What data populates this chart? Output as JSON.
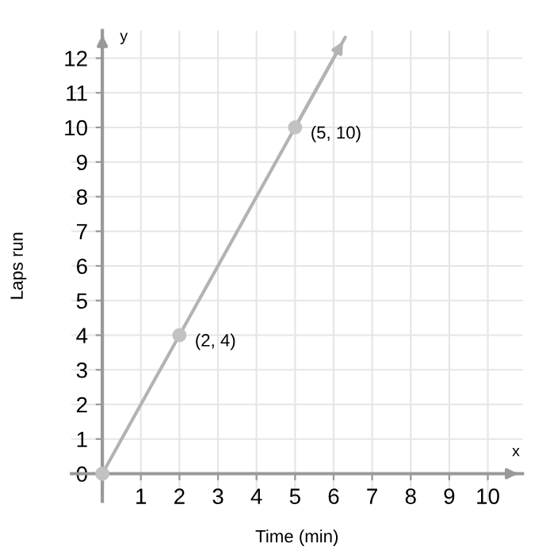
{
  "chart_data": {
    "type": "line",
    "xlabel": "Time (min)",
    "ylabel": "Laps run",
    "series": [
      {
        "color": "#b3b3b3",
        "x": [
          0,
          2,
          5,
          6.3
        ],
        "values": [
          0,
          4,
          10,
          12.6
        ],
        "marker": "none"
      },
      {
        "type": "scatter",
        "color": "#c2c2c2",
        "x": [
          0,
          2,
          5
        ],
        "values": [
          0,
          4,
          10
        ],
        "marker": "circle"
      }
    ],
    "annotations": [
      {
        "text": "(2, 4)",
        "x": 2,
        "y": 4
      },
      {
        "text": "(5, 10)",
        "x": 5,
        "y": 10
      },
      "x",
      "y"
    ],
    "xlim": [
      -0.8,
      10.9
    ],
    "ylim": [
      -0.8,
      12.8
    ],
    "xticks": [
      {
        "value": 0,
        "label": null
      },
      1,
      2,
      3,
      4,
      5,
      6,
      7,
      8,
      9,
      10
    ],
    "yticks": [
      {
        "value": 0,
        "label": "0"
      },
      1,
      2,
      3,
      4,
      5,
      6,
      7,
      8,
      9,
      10,
      11,
      12
    ],
    "grid": true
  }
}
